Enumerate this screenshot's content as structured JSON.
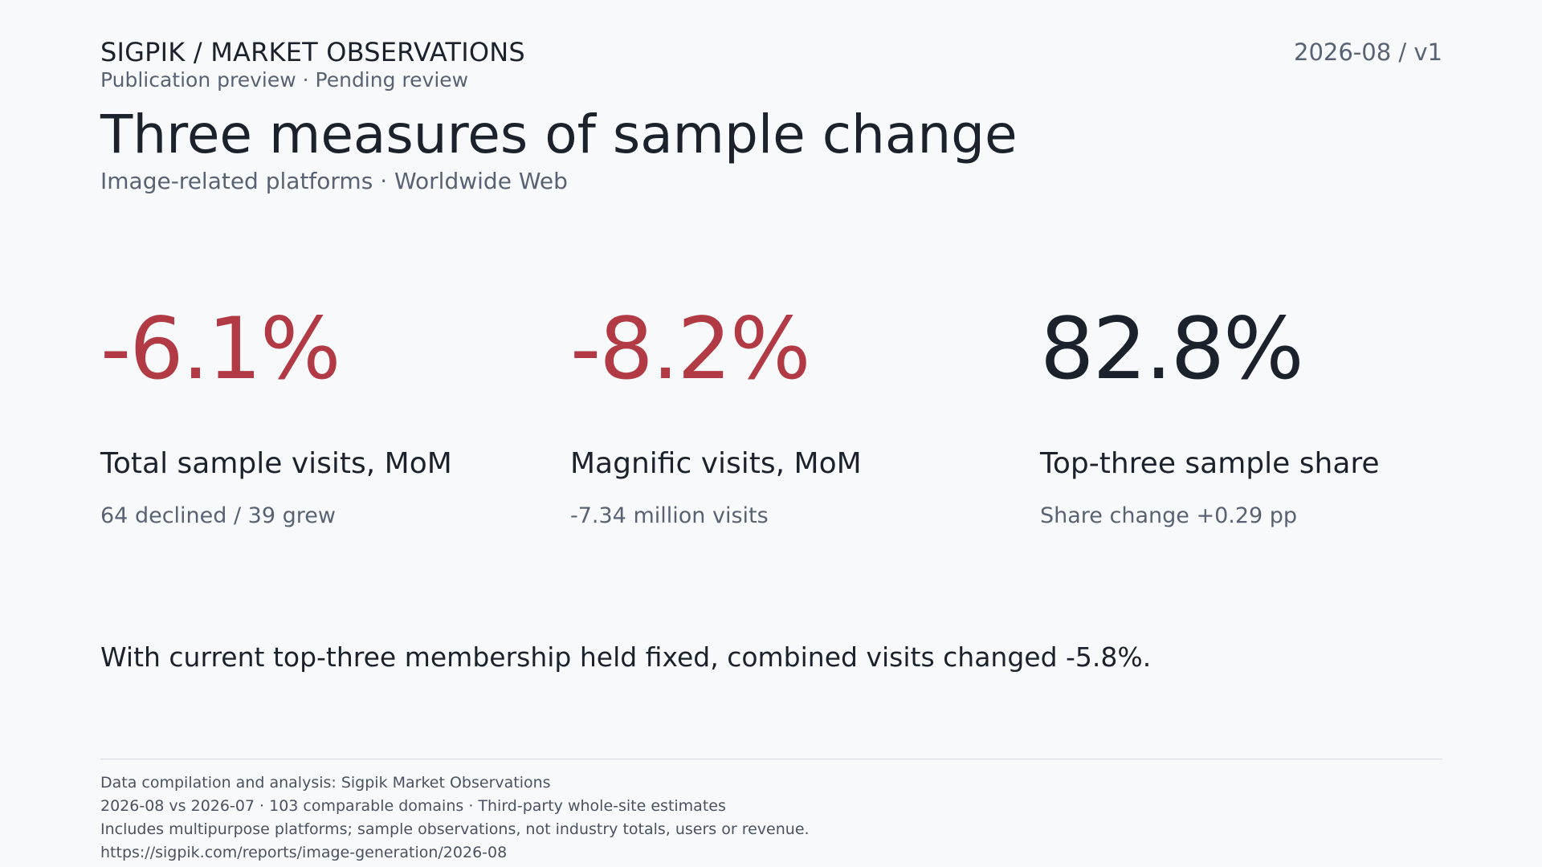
{
  "header": {
    "brand": "SIGPIK / MARKET OBSERVATIONS",
    "version": "2026-08 / v1",
    "status": "Publication preview · Pending review"
  },
  "title": "Three measures of sample change",
  "subtitle": "Image-related platforms · Worldwide Web",
  "colors": {
    "negative": "#b23a44",
    "neutral": "#1c222b",
    "muted": "#596273",
    "background": "#f8f9fb"
  },
  "metrics": [
    {
      "value": "-6.1%",
      "label": "Total sample visits, MoM",
      "detail": "64 declined / 39 grew",
      "tone": "negative"
    },
    {
      "value": "-8.2%",
      "label": "Magnific visits, MoM",
      "detail": "-7.34 million visits",
      "tone": "negative"
    },
    {
      "value": "82.8%",
      "label": "Top-three sample share",
      "detail": "Share change +0.29 pp",
      "tone": "neutral"
    }
  ],
  "note": "With current top-three membership held fixed, combined visits changed -5.8%.",
  "footer": {
    "lines": [
      "Data compilation and analysis: Sigpik Market Observations",
      "2026-08 vs 2026-07 · 103 comparable domains · Third-party whole-site estimates",
      "Includes multipurpose platforms; sample observations, not industry totals, users or revenue."
    ],
    "link": "https://sigpik.com/reports/image-generation/2026-08"
  }
}
